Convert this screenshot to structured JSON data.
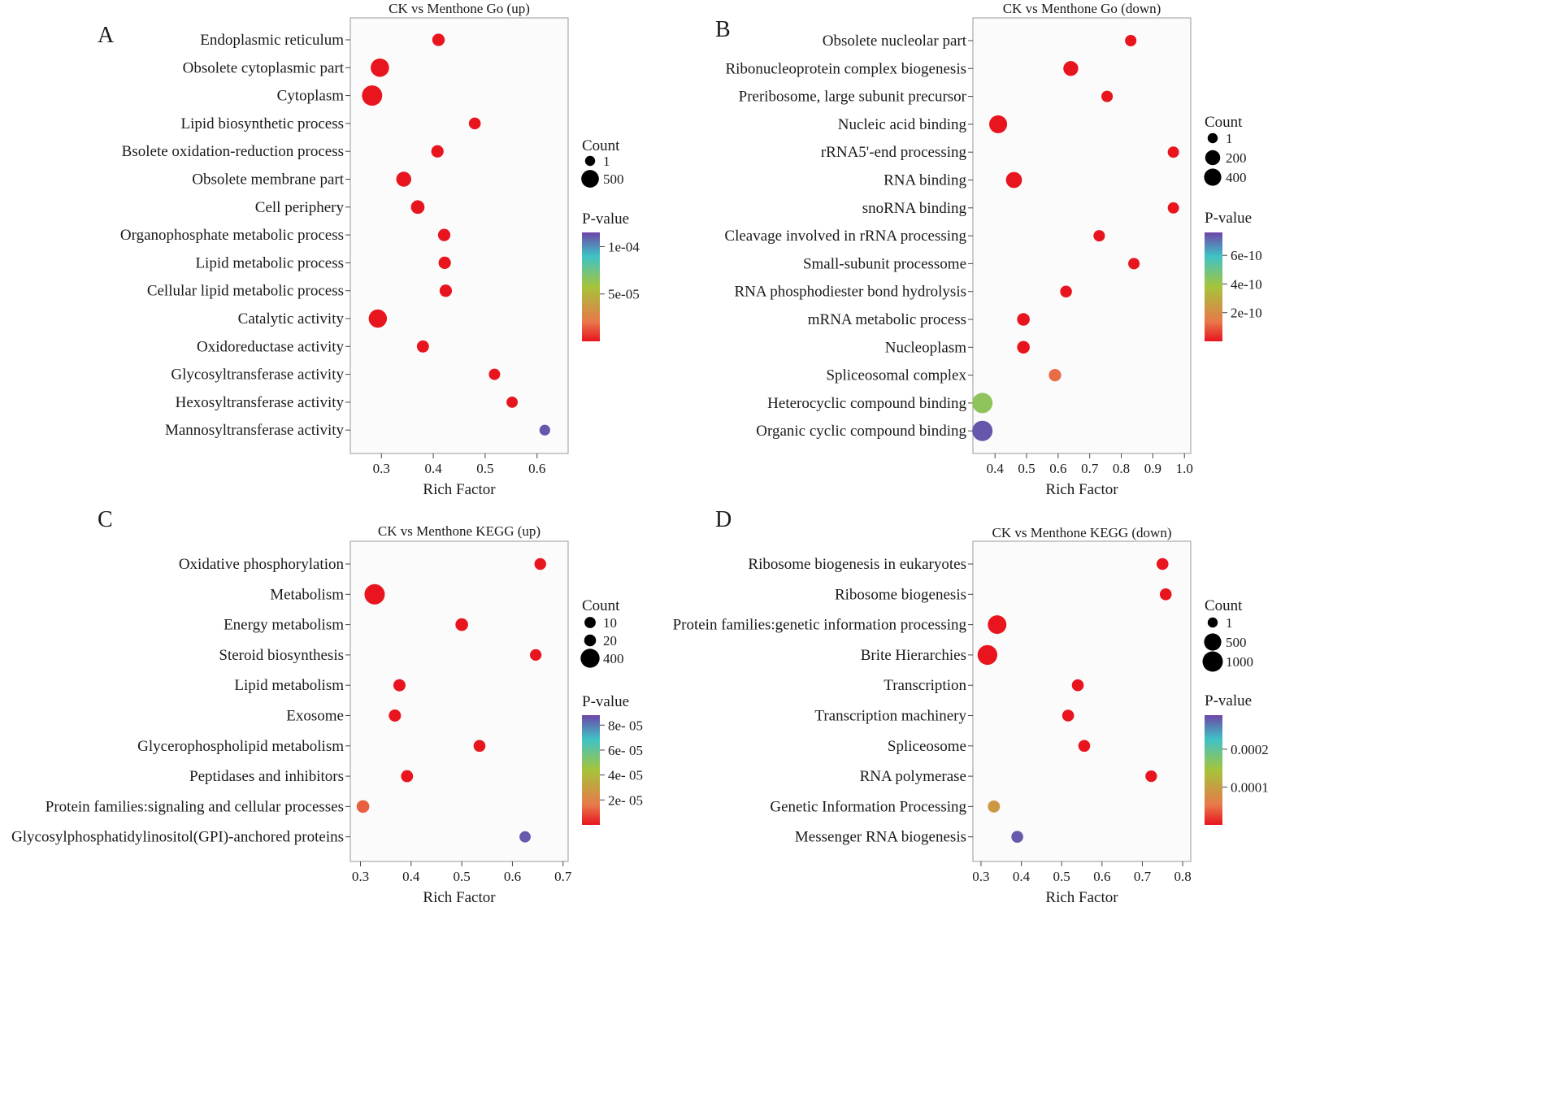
{
  "figure_caption": "",
  "chart_data": [
    {
      "id": "A",
      "type": "scatter",
      "panel_label": "A",
      "title": "CK vs Menthone Go (up)",
      "xlabel": "Rich Factor",
      "xlim": [
        0.24,
        0.66
      ],
      "xticks": [
        0.3,
        0.4,
        0.5,
        0.6
      ],
      "xtick_labels": [
        "0.3",
        "0.4",
        "0.5",
        "0.6"
      ],
      "categories": [
        "Endoplasmic reticulum",
        "Obsolete cytoplasmic part",
        "Cytoplasm",
        "Lipid biosynthetic process",
        "Bsolete oxidation-reduction process",
        "Obsolete membrane part",
        "Cell periphery",
        "Organophosphate metabolic process",
        "Lipid metabolic process",
        "Cellular lipid metabolic process",
        "Catalytic activity",
        "Oxidoreductase activity",
        "Glycosyltransferase activity",
        "Hexosyltransferase activity",
        "Mannosyltransferase activity"
      ],
      "rich_factor": [
        0.41,
        0.297,
        0.282,
        0.48,
        0.408,
        0.343,
        0.37,
        0.421,
        0.422,
        0.424,
        0.293,
        0.38,
        0.518,
        0.552,
        0.615
      ],
      "count": [
        60,
        600,
        900,
        35,
        55,
        220,
        120,
        55,
        55,
        55,
        580,
        45,
        20,
        18,
        8
      ],
      "pvalue": [
        1e-07,
        1e-07,
        1e-07,
        1e-07,
        1e-07,
        1e-07,
        1e-07,
        1e-07,
        1e-07,
        1e-07,
        1e-07,
        1e-07,
        1e-07,
        1e-07,
        0.000112
      ],
      "legend": {
        "size_title": "Count",
        "size_entries": [
          {
            "label": "1",
            "count": 1
          },
          {
            "label": "500",
            "count": 500
          }
        ],
        "color_title": "P-value",
        "color_range": [
          0,
          0.000115
        ],
        "color_ticks": [
          0.0001,
          5e-05
        ],
        "color_tick_labels": [
          "1e-04",
          "5e-05"
        ]
      }
    },
    {
      "id": "B",
      "type": "scatter",
      "panel_label": "B",
      "title": "CK vs Menthone Go (down)",
      "xlabel": "Rich Factor",
      "xlim": [
        0.33,
        1.02
      ],
      "xticks": [
        0.4,
        0.5,
        0.6,
        0.7,
        0.8,
        0.9,
        1.0
      ],
      "xtick_labels": [
        "0.4",
        "0.5",
        "0.6",
        "0.7",
        "0.8",
        "0.9",
        "1.0"
      ],
      "categories": [
        "Obsolete nucleolar part",
        "Ribonucleoprotein complex biogenesis",
        "Preribosome, large subunit precursor",
        "Nucleic acid binding",
        "rRNA5'-end processing",
        "RNA binding",
        "snoRNA binding",
        "Cleavage involved in rRNA processing",
        "Small-subunit processome",
        "RNA phosphodiester bond hydrolysis",
        "mRNA metabolic process",
        "Nucleoplasm",
        "Spliceosomal complex",
        "Heterocyclic compound binding",
        "Organic cyclic compound binding"
      ],
      "rich_factor": [
        0.83,
        0.64,
        0.755,
        0.41,
        0.965,
        0.46,
        0.965,
        0.73,
        0.84,
        0.625,
        0.49,
        0.49,
        0.59,
        0.36,
        0.36
      ],
      "count": [
        20,
        190,
        20,
        480,
        18,
        280,
        18,
        20,
        20,
        30,
        60,
        60,
        50,
        800,
        800
      ],
      "pvalue": [
        1e-13,
        1e-13,
        1e-13,
        1e-13,
        1e-13,
        1e-13,
        1e-13,
        1e-13,
        1e-13,
        1e-13,
        1e-13,
        1e-13,
        1.2e-10,
        4.3e-10,
        7.4e-10
      ],
      "legend": {
        "size_title": "Count",
        "size_entries": [
          {
            "label": "1",
            "count": 1
          },
          {
            "label": "200",
            "count": 200
          },
          {
            "label": "400",
            "count": 400
          }
        ],
        "color_title": "P-value",
        "color_range": [
          0,
          7.6e-10
        ],
        "color_ticks": [
          6e-10,
          4e-10,
          2e-10
        ],
        "color_tick_labels": [
          "6e-10",
          "4e-10",
          "2e-10"
        ]
      }
    },
    {
      "id": "C",
      "type": "scatter",
      "panel_label": "C",
      "title": "CK vs Menthone KEGG (up)",
      "xlabel": "Rich Factor",
      "xlim": [
        0.28,
        0.71
      ],
      "xticks": [
        0.3,
        0.4,
        0.5,
        0.6,
        0.7
      ],
      "xtick_labels": [
        "0.3",
        "0.4",
        "0.5",
        "0.6",
        "0.7"
      ],
      "categories": [
        "Oxidative phosphorylation",
        "Metabolism",
        "Energy metabolism",
        "Steroid biosynthesis",
        "Lipid metabolism",
        "Exosome",
        "Glycerophospholipid metabolism",
        "Peptidases and inhibitors",
        "Protein families:signaling and cellular processes",
        "Glycosylphosphatidylinositol(GPI)-anchored proteins"
      ],
      "rich_factor": [
        0.655,
        0.328,
        0.5,
        0.646,
        0.377,
        0.368,
        0.535,
        0.392,
        0.305,
        0.625
      ],
      "count": [
        18,
        520,
        40,
        15,
        28,
        28,
        22,
        25,
        40,
        10
      ],
      "pvalue": [
        1e-07,
        1e-07,
        1e-07,
        1e-07,
        1e-07,
        1e-07,
        1e-07,
        1e-07,
        1.2e-05,
        8.5e-05
      ],
      "legend": {
        "size_title": "Count",
        "size_entries": [
          {
            "label": "10",
            "count": 10
          },
          {
            "label": "20",
            "count": 20
          },
          {
            "label": "400",
            "count": 400
          }
        ],
        "color_title": "P-value",
        "color_range": [
          0,
          8.8e-05
        ],
        "color_ticks": [
          8e-05,
          6e-05,
          4e-05,
          2e-05
        ],
        "color_tick_labels": [
          "8e- 05",
          "6e- 05",
          "4e- 05",
          "2e- 05"
        ]
      }
    },
    {
      "id": "D",
      "type": "scatter",
      "panel_label": "D",
      "title": "CK vs Menthone KEGG (down)",
      "xlabel": "Rich Factor",
      "xlim": [
        0.28,
        0.82
      ],
      "xticks": [
        0.3,
        0.4,
        0.5,
        0.6,
        0.7,
        0.8
      ],
      "xtick_labels": [
        "0.3",
        "0.4",
        "0.5",
        "0.6",
        "0.7",
        "0.8"
      ],
      "categories": [
        "Ribosome biogenesis in eukaryotes",
        "Ribosome biogenesis",
        "Protein families:genetic information processing",
        "Brite Hierarchies",
        "Transcription",
        "Transcription machinery",
        "Spliceosome",
        "RNA polymerase",
        "Genetic Information Processing",
        "Messenger RNA biogenesis"
      ],
      "rich_factor": [
        0.75,
        0.758,
        0.34,
        0.316,
        0.54,
        0.516,
        0.556,
        0.722,
        0.332,
        0.39
      ],
      "count": [
        40,
        40,
        700,
        900,
        40,
        40,
        40,
        30,
        50,
        40
      ],
      "pvalue": [
        1e-08,
        1e-08,
        1e-08,
        1e-08,
        1e-08,
        1e-08,
        1e-08,
        1e-08,
        9e-05,
        0.00028
      ],
      "legend": {
        "size_title": "Count",
        "size_entries": [
          {
            "label": "1",
            "count": 1
          },
          {
            "label": "500",
            "count": 500
          },
          {
            "label": "1000",
            "count": 1000
          }
        ],
        "color_title": "P-value",
        "color_range": [
          0,
          0.00029
        ],
        "color_ticks": [
          0.0002,
          0.0001
        ],
        "color_tick_labels": [
          "0.0002",
          "0.0001"
        ]
      }
    }
  ],
  "colors": {
    "panel_bg": "#fbfbfb",
    "frame": "#aaaaaa",
    "text": "#1a1a1a",
    "scale_low": "#e8141e",
    "scale_mid_low": "#e8784a",
    "scale_mid": "#a6c43a",
    "scale_mid_high": "#3fc3c6",
    "scale_high": "#6e46a8"
  }
}
